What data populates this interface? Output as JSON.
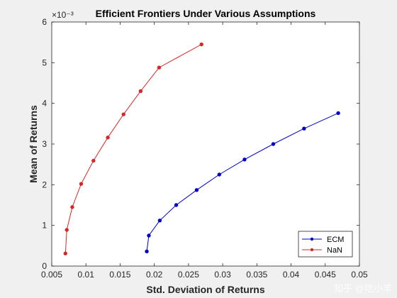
{
  "chart_data": {
    "type": "line",
    "title": "Efficient Frontiers Under Various Assumptions",
    "xlabel": "Std. Deviation of Returns",
    "ylabel": "Mean of Returns",
    "y_exponent_label": "×10⁻³",
    "xlim": [
      0.005,
      0.05
    ],
    "ylim": [
      0,
      6
    ],
    "y_scale_factor": 0.001,
    "x_ticks": [
      0.005,
      0.01,
      0.015,
      0.02,
      0.025,
      0.03,
      0.035,
      0.04,
      0.045,
      0.05
    ],
    "x_tick_labels": [
      "0.005",
      "0.01",
      "0.015",
      "0.02",
      "0.025",
      "0.03",
      "0.035",
      "0.04",
      "0.045",
      "0.05"
    ],
    "y_ticks": [
      0,
      1,
      2,
      3,
      4,
      5,
      6
    ],
    "y_tick_labels": [
      "0",
      "1",
      "2",
      "3",
      "4",
      "5",
      "6"
    ],
    "grid": false,
    "legend_position": "bottom-right",
    "series": [
      {
        "name": "ECM",
        "color": "#0000c8",
        "marker": "dot",
        "x": [
          0.0189,
          0.0192,
          0.0208,
          0.0232,
          0.0262,
          0.0295,
          0.0332,
          0.0374,
          0.0419,
          0.0469
        ],
        "y": [
          0.36,
          0.75,
          1.12,
          1.5,
          1.87,
          2.25,
          2.62,
          3.0,
          3.38,
          3.76
        ]
      },
      {
        "name": "NaN",
        "color": "#d62728",
        "marker": "dot",
        "x": [
          0.007,
          0.0072,
          0.008,
          0.0093,
          0.0111,
          0.0132,
          0.0155,
          0.018,
          0.0207,
          0.0269
        ],
        "y": [
          0.31,
          0.89,
          1.45,
          2.02,
          2.59,
          3.16,
          3.73,
          4.3,
          4.88,
          5.45
        ]
      }
    ]
  },
  "watermark": {
    "text": "知乎 @吃小羊"
  }
}
